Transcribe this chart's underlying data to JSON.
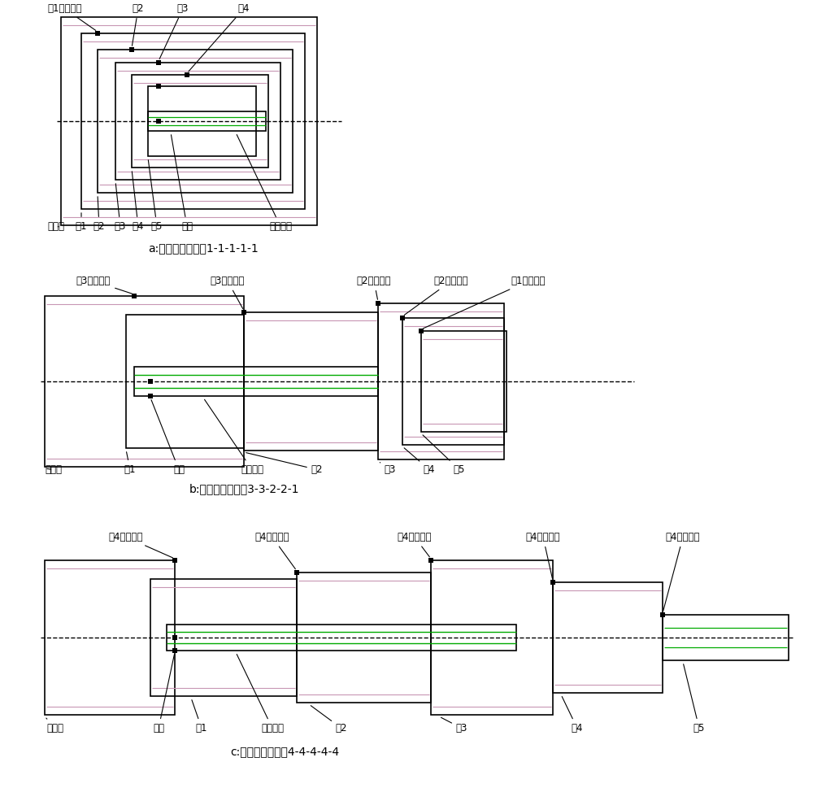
{
  "background": "#ffffff",
  "line_color": "#000000",
  "pink_color": "#c896b4",
  "green_color": "#00aa00",
  "diagram_a": {
    "caption": "a:吊臂全缩组合：1-1-1-1-1",
    "top_labels": [
      "孔1（管锁）",
      "孔2",
      "孔3",
      "孔4"
    ],
    "bottom_labels": [
      "基本管",
      "管1",
      "管2",
      "管3",
      "管4",
      "管5",
      "缸锁",
      "伸缩油缸"
    ]
  },
  "diagram_b": {
    "caption": "b:吊臂伸出组合：3-3-2-2-1",
    "top_labels": [
      "孔3（管锁）",
      "孔3（管锁）",
      "孔2（管锁）",
      "孔2（管锁）",
      "孔1（管锁）"
    ],
    "bottom_labels": [
      "基本管",
      "管1",
      "缸锁",
      "伸缩油缸",
      "管2",
      "管3",
      "管4",
      "管5"
    ]
  },
  "diagram_c": {
    "caption": "c:吊臂全伸组合：4-4-4-4-4",
    "top_labels": [
      "孔4（管锁）",
      "孔4（管锁）",
      "孔4（管锁）",
      "孔4（管锁）",
      "孔4（管锁）"
    ],
    "bottom_labels": [
      "基本管",
      "缸锁",
      "管1",
      "伸缩油缸",
      "管2",
      "管3",
      "管4",
      "管5"
    ]
  }
}
